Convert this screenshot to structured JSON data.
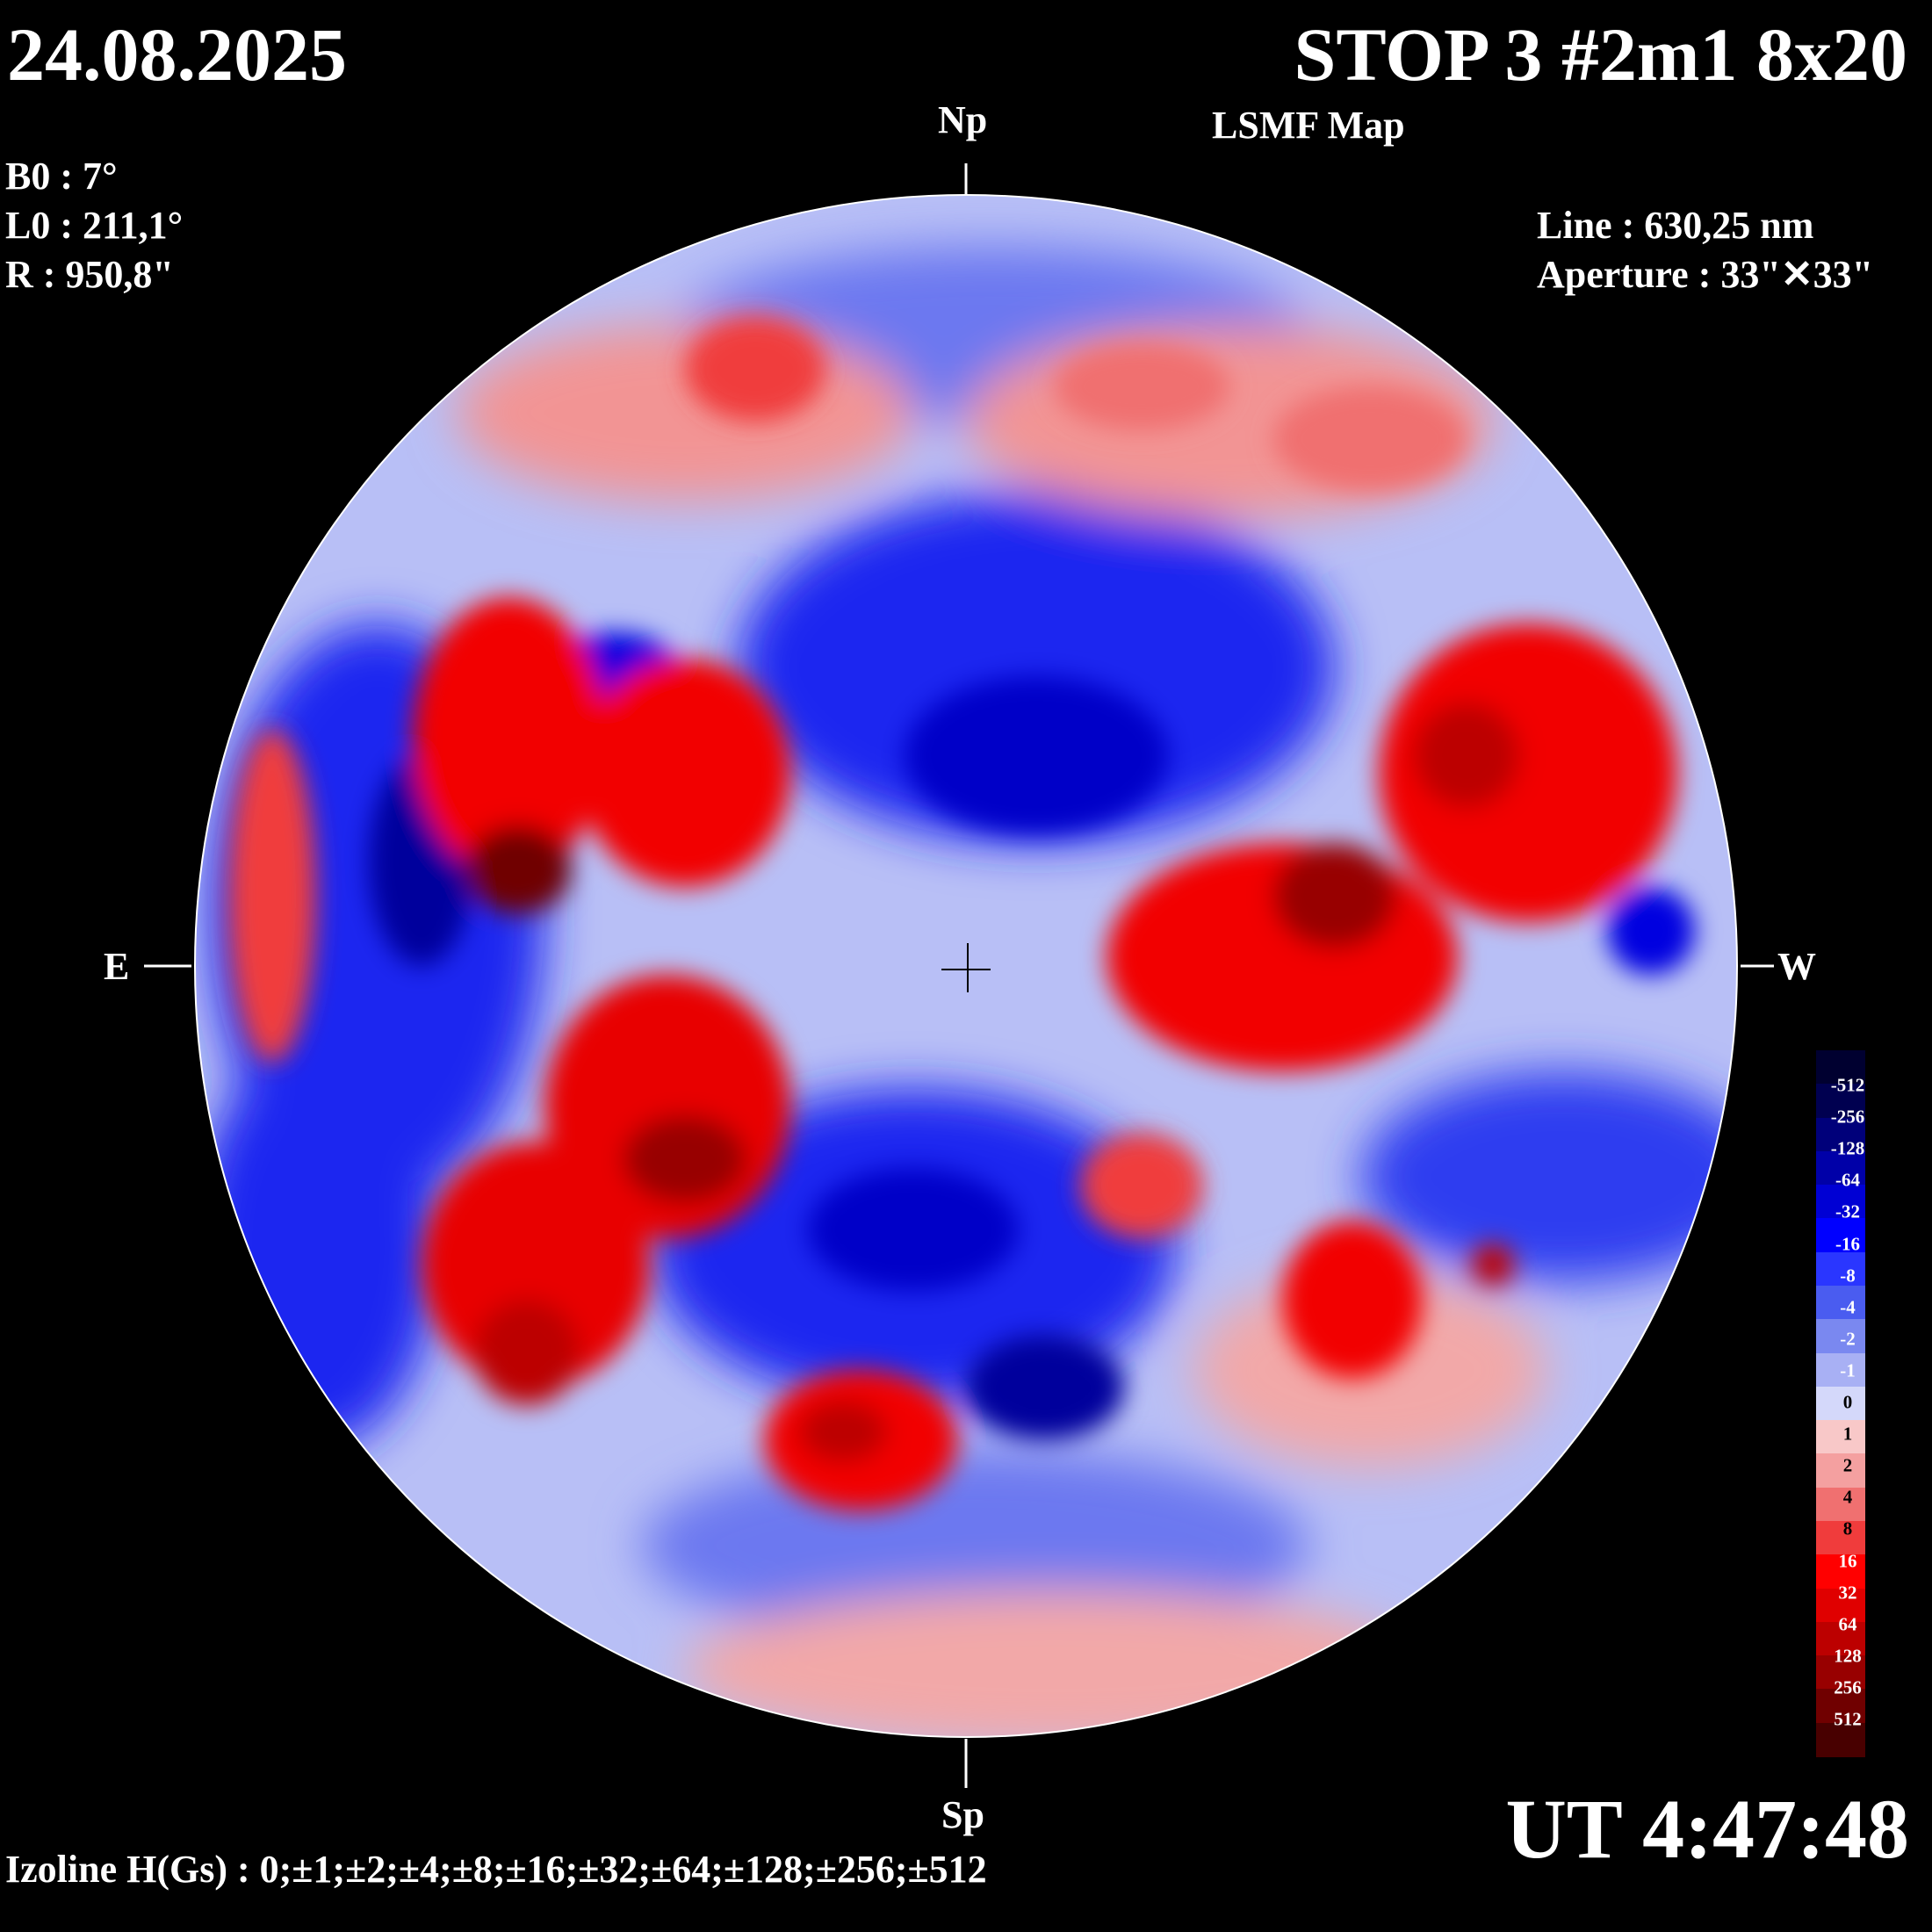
{
  "header": {
    "date": "24.08.2025",
    "title": "STOP 3 #2m1 8x20",
    "subtitle": "LSMF  Map"
  },
  "params": {
    "b0": "B0 : 7°",
    "l0": "L0 : 211,1°",
    "r": "R  : 950,8\""
  },
  "instrument": {
    "line": "Line :  630,25 nm",
    "aperture": "Aperture : 33\"✕33\""
  },
  "directions": {
    "north": "Np",
    "south": "Sp",
    "east": "E",
    "west": "W"
  },
  "time": "UT 4:47:48",
  "izoline": "Izoline H(Gs) : 0;±1;±2;±4;±8;±16;±32;±64;±128;±256;±512",
  "legend": {
    "labels": [
      "-512",
      "-256",
      "-128",
      "-64",
      "-32",
      "-16",
      "-8",
      "-4",
      "-2",
      "-1",
      "0",
      "1",
      "2",
      "4",
      "8",
      "16",
      "32",
      "64",
      "128",
      "256",
      "512"
    ],
    "colors": [
      "#000030",
      "#000050",
      "#00007a",
      "#0000a8",
      "#0000d4",
      "#0000ff",
      "#2a36ff",
      "#4a5cf0",
      "#7a88f0",
      "#a8b0f4",
      "#d4d8fa",
      "#f8c8c8",
      "#f4a0a0",
      "#f07070",
      "#f03c3c",
      "#ff0000",
      "#e00000",
      "#bc0000",
      "#980000",
      "#700000",
      "#480000"
    ]
  },
  "colors": {
    "background": "#000000",
    "text": "#ffffff",
    "negative": "#0000ff",
    "positive": "#ff0000"
  }
}
